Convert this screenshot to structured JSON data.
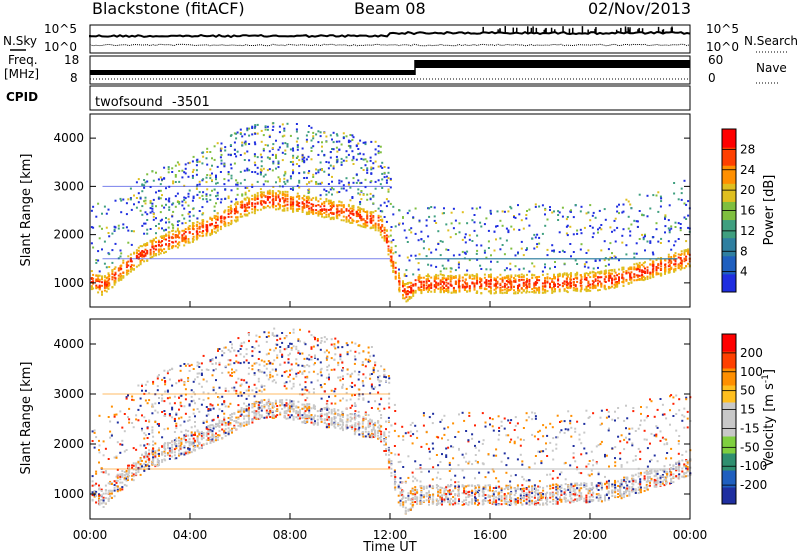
{
  "header": {
    "station": "Blackstone (fitACF)",
    "beam": "Beam 08",
    "date": "02/Nov/2013"
  },
  "noise_panel": {
    "left_label": "N.Sky",
    "left_ticks": [
      "10^5",
      "10^0"
    ],
    "right_label": "N.Search",
    "right_ticks": [
      "10^5",
      "10^0"
    ]
  },
  "freq_panel": {
    "left_label_line1": "Freq.",
    "left_label_line2": "[MHz]",
    "left_ticks": [
      "18",
      "8"
    ],
    "right_label": "Nave",
    "right_ticks": [
      "60",
      "0"
    ]
  },
  "cpid_panel": {
    "label": "CPID",
    "program": "twofsound",
    "cpid_value": "-3501"
  },
  "x_axis": {
    "title": "Time UT",
    "tick_labels": [
      "00:00",
      "04:00",
      "08:00",
      "12:00",
      "16:00",
      "20:00",
      "00:00"
    ]
  },
  "chart_data": [
    {
      "type": "heatmap",
      "title": "",
      "xlabel": "Time UT",
      "ylabel": "Slant Range [km]",
      "x_units": "hours UT",
      "xlim": [
        0,
        24
      ],
      "ylim": [
        500,
        4500
      ],
      "y_tick_labels": [
        "1000",
        "2000",
        "3000",
        "4000"
      ],
      "colorbar": {
        "label": "Power [dB]",
        "tick_labels": [
          "4",
          "8",
          "12",
          "16",
          "20",
          "24",
          "28"
        ],
        "range": [
          0,
          32
        ],
        "colors": [
          "#1f2ee0",
          "#1f5fbf",
          "#2f7fa0",
          "#3f9f7f",
          "#7fbf3f",
          "#dfbf1f",
          "#ff8f00",
          "#ff4000",
          "#ff0000"
        ]
      },
      "bands": [
        {
          "name": "main",
          "x": [
            0,
            0.5,
            1,
            1.5,
            2,
            2.5,
            3,
            3.5,
            4,
            5,
            6,
            7,
            8,
            9,
            10,
            11,
            11.5,
            11.8,
            12,
            12.3,
            12.6,
            13,
            14,
            16,
            18,
            20,
            21,
            22,
            23,
            23.7,
            24
          ],
          "y": [
            1100,
            950,
            1200,
            1400,
            1600,
            1750,
            1850,
            1950,
            2050,
            2250,
            2550,
            2750,
            2700,
            2600,
            2500,
            2350,
            2300,
            2000,
            1600,
            1050,
            800,
            1000,
            1000,
            1000,
            1000,
            1050,
            1100,
            1250,
            1400,
            1500,
            1550
          ],
          "width": 250,
          "power": 25
        }
      ]
    },
    {
      "type": "heatmap",
      "title": "",
      "xlabel": "Time UT",
      "ylabel": "Slant Range [km]",
      "x_units": "hours UT",
      "xlim": [
        0,
        24
      ],
      "ylim": [
        500,
        4500
      ],
      "y_tick_labels": [
        "1000",
        "2000",
        "3000",
        "4000"
      ],
      "colorbar": {
        "label": "Velocity [m s^-1]",
        "tick_labels": [
          "200",
          "100",
          "50",
          "15",
          "-15",
          "-50",
          "-100",
          "-200"
        ],
        "range": [
          -250,
          250
        ],
        "colors": [
          "#1f2fa0",
          "#1f5fbf",
          "#2f8f6f",
          "#7fcf3f",
          "#c8c8c8",
          "#c8c8c8",
          "#ffbf1f",
          "#ff8f00",
          "#ff4000",
          "#ff0000"
        ]
      }
    }
  ]
}
